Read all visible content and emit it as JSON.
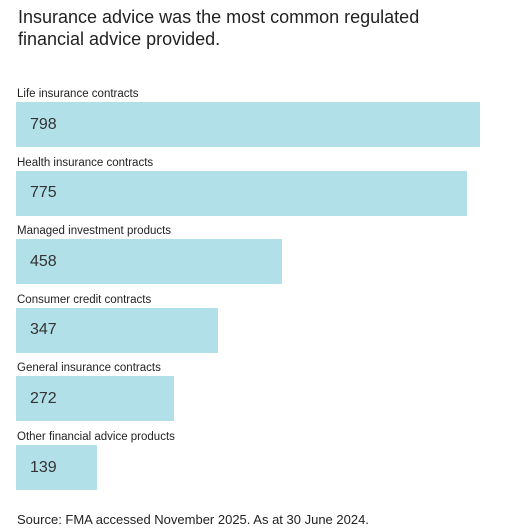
{
  "title": "Insurance advice was the most common regulated financial advice provided.",
  "source": "Source: FMA accessed November 2025. As at 30 June 2024.",
  "bar_color": "#b2e0e8",
  "chart_data": {
    "type": "bar",
    "orientation": "horizontal",
    "title": "Insurance advice was the most common regulated financial advice provided.",
    "categories": [
      "Life insurance contracts",
      "Health insurance contracts",
      "Managed investment products",
      "Consumer credit contracts",
      "General insurance contracts",
      "Other financial advice products"
    ],
    "values": [
      798,
      775,
      458,
      347,
      272,
      139
    ],
    "value_labels": [
      "798",
      "775",
      "458",
      "347",
      "272",
      "139"
    ],
    "xlim": [
      0,
      798
    ],
    "grid": false,
    "legend": "none"
  }
}
